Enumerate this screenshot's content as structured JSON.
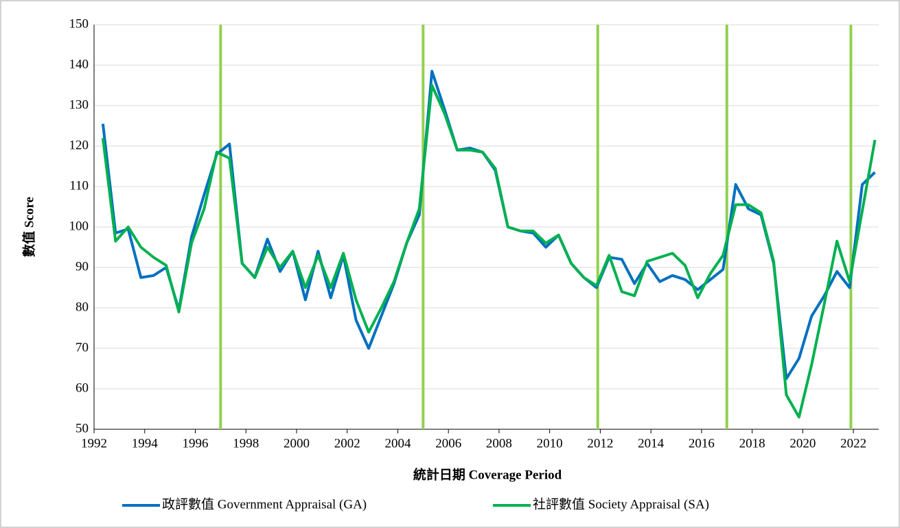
{
  "chart_data": {
    "type": "line",
    "x_label": "統計日期 Coverage Period",
    "y_label": "數值 Score",
    "x": [
      1992.35,
      1992.85,
      1993.35,
      1993.85,
      1994.35,
      1994.85,
      1995.35,
      1995.85,
      1996.35,
      1996.85,
      1997.35,
      1997.85,
      1998.35,
      1998.85,
      1999.35,
      1999.85,
      2000.35,
      2000.85,
      2001.35,
      2001.85,
      2002.35,
      2002.85,
      2003.35,
      2003.85,
      2004.35,
      2004.85,
      2005.35,
      2005.85,
      2006.35,
      2006.85,
      2007.35,
      2007.85,
      2008.35,
      2008.85,
      2009.35,
      2009.85,
      2010.35,
      2010.85,
      2011.35,
      2011.85,
      2012.35,
      2012.85,
      2013.35,
      2013.85,
      2014.35,
      2014.85,
      2015.35,
      2015.85,
      2016.35,
      2016.85,
      2017.35,
      2017.85,
      2018.35,
      2018.85,
      2019.35,
      2019.85,
      2020.35,
      2020.85,
      2021.35,
      2021.85,
      2022.35,
      2022.85
    ],
    "series": [
      {
        "name": "政評數值 Government Appraisal (GA)",
        "color": "#0070c0",
        "values": [
          125.5,
          98.5,
          99.5,
          87.5,
          88,
          90,
          79.5,
          97.5,
          108,
          118,
          120.5,
          91,
          87.5,
          97,
          89,
          94,
          82,
          94,
          82.5,
          93,
          77,
          70,
          78,
          86,
          96,
          103,
          138.5,
          129,
          119,
          119.5,
          118.5,
          114,
          100,
          99,
          98.5,
          95,
          98,
          91,
          87.5,
          85,
          92.5,
          92,
          86,
          91,
          86.5,
          88,
          87,
          84.5,
          87,
          89.5,
          110.5,
          104.5,
          103,
          91,
          62.5,
          67.5,
          78,
          83,
          89,
          85,
          110.5,
          113.5
        ]
      },
      {
        "name": "社評數值 Society Appraisal (SA)",
        "color": "#00b050",
        "values": [
          122,
          96.5,
          100,
          95,
          92.5,
          90.5,
          79,
          96,
          104.5,
          118.5,
          117,
          91,
          87.5,
          95,
          90,
          94,
          85,
          93,
          85,
          93.5,
          82,
          74,
          80,
          86.5,
          96,
          104.5,
          135,
          128,
          119,
          119,
          118.5,
          114.5,
          100,
          99,
          99,
          96,
          98,
          91,
          87.5,
          85.5,
          93,
          84,
          83,
          91.5,
          92.5,
          93.5,
          90.5,
          82.5,
          88.5,
          93,
          105.5,
          105.5,
          103.5,
          91.5,
          58.5,
          53,
          66,
          81,
          96.5,
          86.5,
          104,
          121.5
        ]
      }
    ],
    "reference_lines": {
      "x": [
        1997,
        2005,
        2011.9,
        2017,
        2021.9
      ],
      "color": "#92d050"
    },
    "xlim": [
      1992,
      2023
    ],
    "xticks": [
      1992,
      1994,
      1996,
      1998,
      2000,
      2002,
      2004,
      2006,
      2008,
      2010,
      2012,
      2014,
      2016,
      2018,
      2020,
      2022
    ],
    "ylim": [
      50,
      150
    ],
    "yticks": [
      50,
      60,
      70,
      80,
      90,
      100,
      110,
      120,
      130,
      140,
      150
    ],
    "grid": true,
    "legend": "bottom"
  }
}
